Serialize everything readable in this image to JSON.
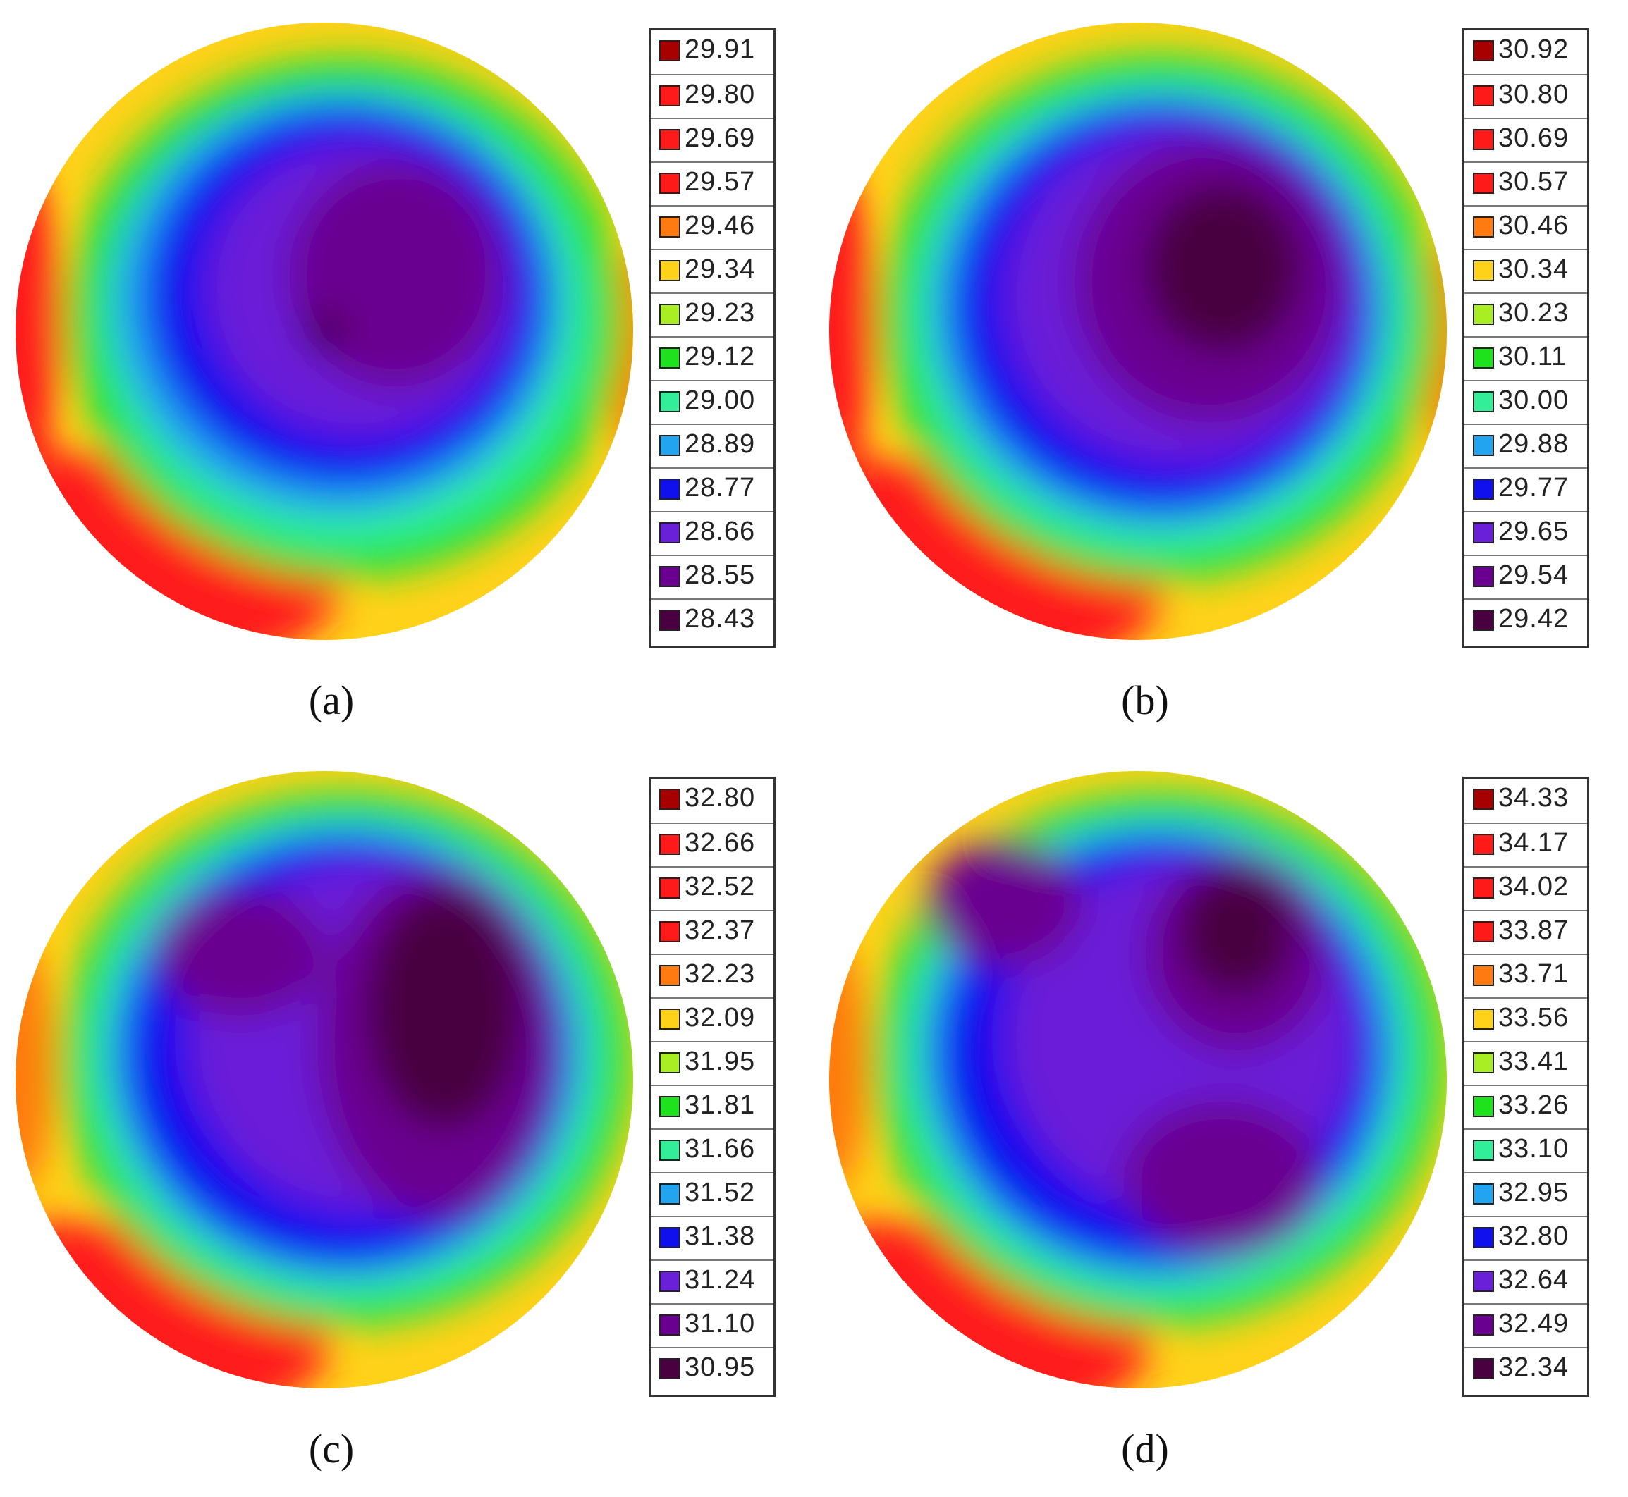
{
  "colors": {
    "scale": [
      "#4a0040",
      "#6a0090",
      "#6a1fd8",
      "#1010ee",
      "#22a4f0",
      "#33ee99",
      "#1ee21e",
      "#a8ee22",
      "#ffd21a",
      "#ff7a10",
      "#ff1a1a",
      "#ff1a1a",
      "#ff1a1a",
      "#a80000"
    ]
  },
  "panels": [
    {
      "caption": "(a)",
      "legend": [
        "29.91",
        "29.80",
        "29.69",
        "29.57",
        "29.46",
        "29.34",
        "29.23",
        "29.12",
        "29.00",
        "28.89",
        "28.77",
        "28.66",
        "28.55",
        "28.43"
      ]
    },
    {
      "caption": "(b)",
      "legend": [
        "30.92",
        "30.80",
        "30.69",
        "30.57",
        "30.46",
        "30.34",
        "30.23",
        "30.11",
        "30.00",
        "29.88",
        "29.77",
        "29.65",
        "29.54",
        "29.42"
      ]
    },
    {
      "caption": "(c)",
      "legend": [
        "32.80",
        "32.66",
        "32.52",
        "32.37",
        "32.23",
        "32.09",
        "31.95",
        "31.81",
        "31.66",
        "31.52",
        "31.38",
        "31.24",
        "31.10",
        "30.95"
      ]
    },
    {
      "caption": "(d)",
      "legend": [
        "34.33",
        "34.17",
        "34.02",
        "33.87",
        "33.71",
        "33.56",
        "33.41",
        "33.26",
        "33.10",
        "32.95",
        "32.80",
        "32.64",
        "32.49",
        "32.34"
      ]
    }
  ],
  "chart_data": [
    {
      "type": "heatmap",
      "scale_levels": [
        29.91,
        29.8,
        29.69,
        29.57,
        29.46,
        29.34,
        29.23,
        29.12,
        29.0,
        28.89,
        28.77,
        28.66,
        28.55,
        28.43
      ],
      "pattern": "circular map: minimum (dark purple) near center, rising through blue, cyan, green, yellow to red at the rim; highest values along left edge and lower-left rim"
    },
    {
      "type": "heatmap",
      "scale_levels": [
        30.92,
        30.8,
        30.69,
        30.57,
        30.46,
        30.34,
        30.23,
        30.11,
        30.0,
        29.88,
        29.77,
        29.65,
        29.54,
        29.42
      ],
      "pattern": "circular map: purple interior with dark minimum slightly right of center, blue/green bands toward rim, red at left edge and lower-left rim"
    },
    {
      "type": "heatmap",
      "scale_levels": [
        32.8,
        32.66,
        32.52,
        32.37,
        32.23,
        32.09,
        31.95,
        31.81,
        31.66,
        31.52,
        31.38,
        31.24,
        31.1,
        30.95
      ],
      "pattern": "circular map: dark purple minimum region on the right half, blue over left interior, green/yellow rim, red at lower-left rim"
    },
    {
      "type": "heatmap",
      "scale_levels": [
        34.33,
        34.17,
        34.02,
        33.87,
        33.71,
        33.56,
        33.41,
        33.26,
        33.1,
        32.95,
        32.8,
        32.64,
        32.49,
        32.34
      ],
      "pattern": "circular map: several dark purple lobes (upper-left, upper-right, lower-right), blue interior, green rim, red at lower-left rim"
    }
  ]
}
